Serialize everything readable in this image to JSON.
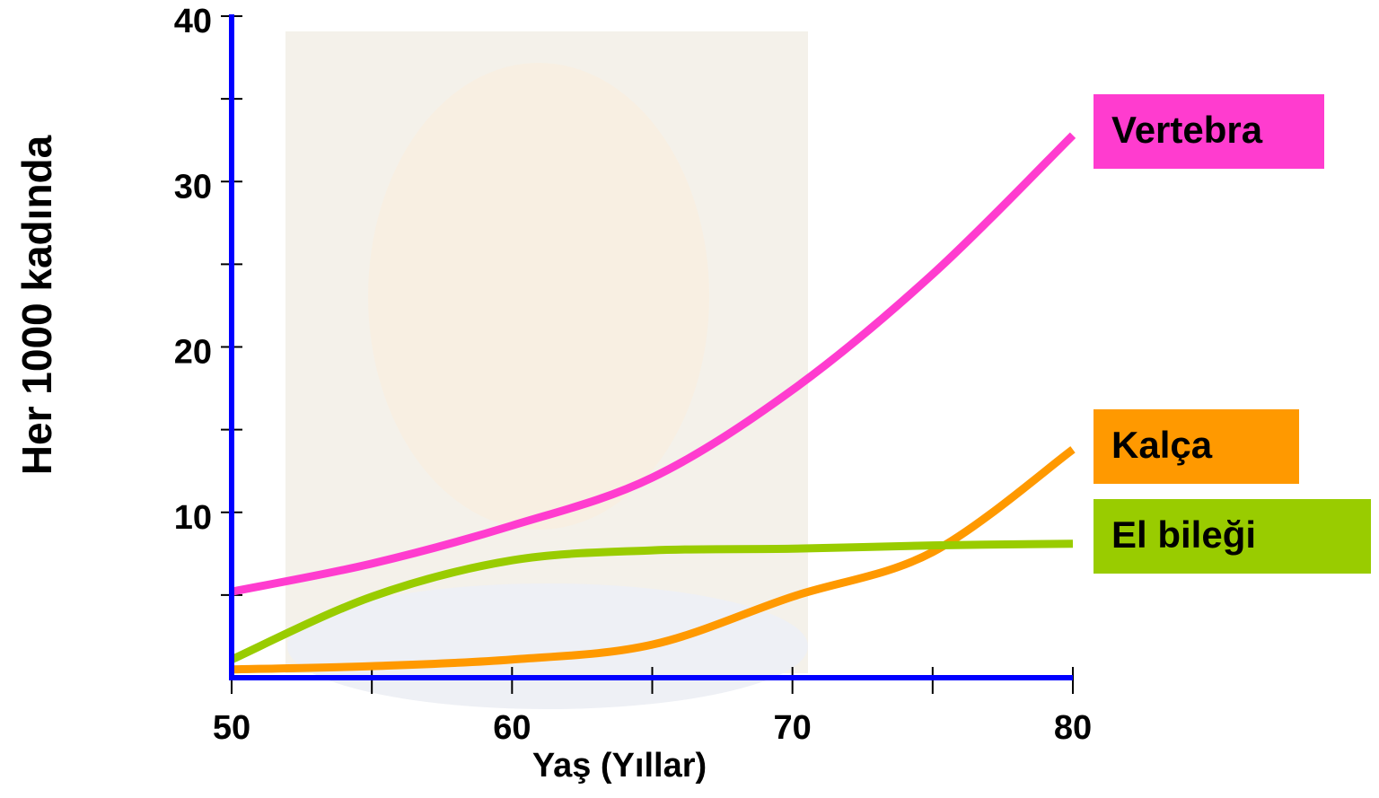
{
  "chart_data": {
    "type": "line",
    "x_label": "Yaş (Yıllar)",
    "y_label": "Her 1000 kadında",
    "x": [
      50,
      55,
      60,
      65,
      70,
      75,
      80
    ],
    "series": [
      {
        "name": "Vertebra",
        "color": "#ff3ccf",
        "values": [
          5.2,
          6.9,
          9.2,
          12.1,
          17.4,
          24.4,
          32.8
        ]
      },
      {
        "name": "Kalça",
        "color": "#ff9900",
        "values": [
          0.5,
          0.7,
          1.1,
          2.0,
          4.9,
          7.6,
          13.8
        ]
      },
      {
        "name": "El bileği",
        "color": "#99cc00",
        "values": [
          1.1,
          4.9,
          7.1,
          7.7,
          7.8,
          8.0,
          8.1
        ]
      }
    ],
    "xlim": [
      50,
      80
    ],
    "xticks": [
      50,
      60,
      70,
      80
    ],
    "ylim": [
      0,
      40
    ],
    "yticks": [
      10,
      20,
      30,
      40
    ],
    "grid": false,
    "legend": "right"
  }
}
